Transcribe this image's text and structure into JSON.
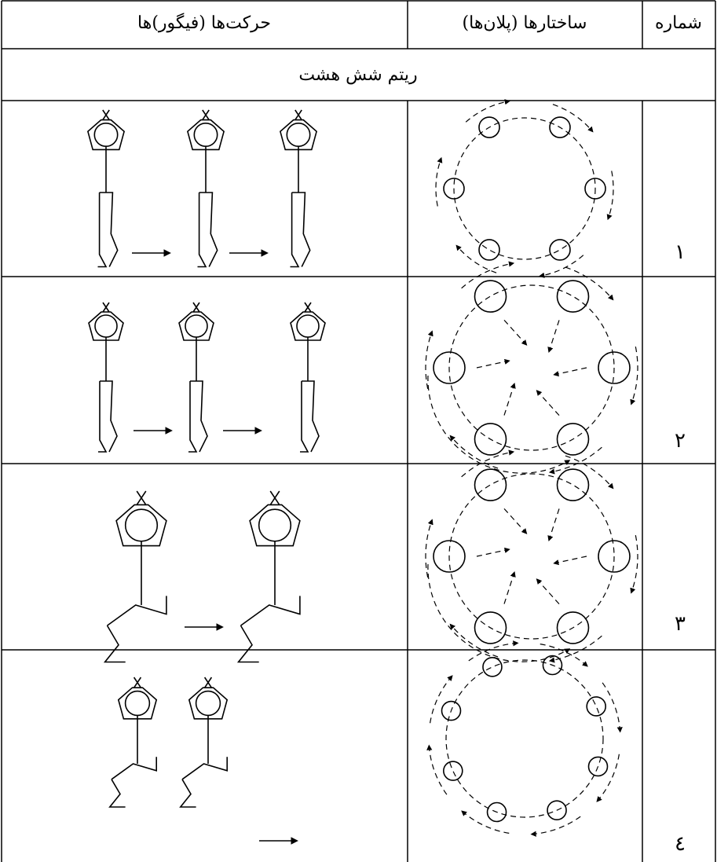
{
  "table": {
    "headers": [
      "حرکت‌ها (فیگور)ها",
      "ساختارها (پلان‌ها)",
      "شماره"
    ],
    "section": "ریتم شش هشت",
    "rows": [
      [
        "۱"
      ],
      [
        "۲"
      ],
      [
        "۳"
      ],
      [
        "٤"
      ]
    ]
  }
}
